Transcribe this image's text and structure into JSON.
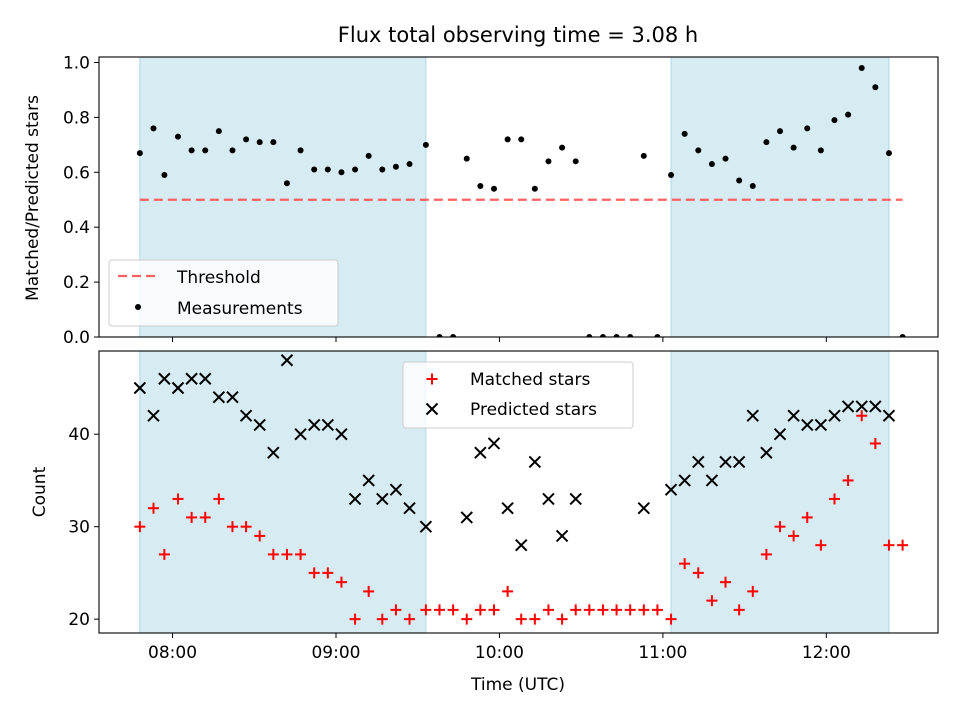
{
  "title": "Flux total observing time = 3.08 h",
  "colors": {
    "shade": "#add8e6",
    "threshold": "#ff6060",
    "measurement": "#000000",
    "matched": "#ff0000",
    "predicted": "#000000"
  },
  "chart_data": [
    {
      "type": "scatter",
      "ylabel": "Matched/Predicted stars",
      "ylim": [
        0,
        1.02
      ],
      "yticks": [
        0.0,
        0.2,
        0.4,
        0.6,
        0.8,
        1.0
      ],
      "yticklabels": [
        "0.0",
        "0.2",
        "0.4",
        "0.6",
        "0.8",
        "1.0"
      ],
      "xlim": [
        "07:33",
        "12:41"
      ],
      "grid": false,
      "shaded_intervals": [
        [
          "07:48",
          "09:33"
        ],
        [
          "11:03",
          "12:23"
        ]
      ],
      "legend": {
        "placement": "lower-left",
        "threshold_label": "Threshold",
        "measurement_label": "Measurements"
      },
      "threshold": {
        "value": 0.5,
        "x_range": [
          "07:48",
          "12:28"
        ]
      },
      "measurements": [
        [
          "07:48",
          0.67
        ],
        [
          "07:53",
          0.76
        ],
        [
          "07:57",
          0.59
        ],
        [
          "08:02",
          0.73
        ],
        [
          "08:07",
          0.68
        ],
        [
          "08:12",
          0.68
        ],
        [
          "08:17",
          0.75
        ],
        [
          "08:22",
          0.68
        ],
        [
          "08:27",
          0.72
        ],
        [
          "08:32",
          0.71
        ],
        [
          "08:37",
          0.71
        ],
        [
          "08:42",
          0.56
        ],
        [
          "08:47",
          0.68
        ],
        [
          "08:52",
          0.61
        ],
        [
          "08:57",
          0.61
        ],
        [
          "09:02",
          0.6
        ],
        [
          "09:07",
          0.61
        ],
        [
          "09:12",
          0.66
        ],
        [
          "09:17",
          0.61
        ],
        [
          "09:22",
          0.62
        ],
        [
          "09:27",
          0.63
        ],
        [
          "09:33",
          0.7
        ],
        [
          "09:38",
          0.0
        ],
        [
          "09:43",
          0.0
        ],
        [
          "09:48",
          0.65
        ],
        [
          "09:53",
          0.55
        ],
        [
          "09:58",
          0.54
        ],
        [
          "10:03",
          0.72
        ],
        [
          "10:08",
          0.72
        ],
        [
          "10:13",
          0.54
        ],
        [
          "10:18",
          0.64
        ],
        [
          "10:23",
          0.69
        ],
        [
          "10:28",
          0.64
        ],
        [
          "10:33",
          0.0
        ],
        [
          "10:38",
          0.0
        ],
        [
          "10:43",
          0.0
        ],
        [
          "10:48",
          0.0
        ],
        [
          "10:53",
          0.66
        ],
        [
          "10:58",
          0.0
        ],
        [
          "11:03",
          0.59
        ],
        [
          "11:08",
          0.74
        ],
        [
          "11:13",
          0.68
        ],
        [
          "11:18",
          0.63
        ],
        [
          "11:23",
          0.65
        ],
        [
          "11:28",
          0.57
        ],
        [
          "11:33",
          0.55
        ],
        [
          "11:38",
          0.71
        ],
        [
          "11:43",
          0.75
        ],
        [
          "11:48",
          0.69
        ],
        [
          "11:53",
          0.76
        ],
        [
          "11:58",
          0.68
        ],
        [
          "12:03",
          0.79
        ],
        [
          "12:08",
          0.81
        ],
        [
          "12:13",
          0.98
        ],
        [
          "12:18",
          0.91
        ],
        [
          "12:23",
          0.67
        ],
        [
          "12:28",
          0.0
        ]
      ]
    },
    {
      "type": "scatter",
      "xlabel": "Time (UTC)",
      "ylabel": "Count",
      "ylim": [
        18.5,
        49
      ],
      "yticks": [
        20,
        30,
        40
      ],
      "yticklabels": [
        "20",
        "30",
        "40"
      ],
      "xlim": [
        "07:33",
        "12:41"
      ],
      "xticks": [
        "08:00",
        "09:00",
        "10:00",
        "11:00",
        "12:00"
      ],
      "xticklabels": [
        "08:00",
        "09:00",
        "10:00",
        "11:00",
        "12:00"
      ],
      "grid": false,
      "shaded_intervals": [
        [
          "07:48",
          "09:33"
        ],
        [
          "11:03",
          "12:23"
        ]
      ],
      "legend": {
        "placement": "top-center",
        "matched_label": "Matched stars",
        "predicted_label": "Predicted stars"
      },
      "matched": [
        [
          "07:48",
          30
        ],
        [
          "07:53",
          32
        ],
        [
          "07:57",
          27
        ],
        [
          "08:02",
          33
        ],
        [
          "08:07",
          31
        ],
        [
          "08:12",
          31
        ],
        [
          "08:17",
          33
        ],
        [
          "08:22",
          30
        ],
        [
          "08:27",
          30
        ],
        [
          "08:32",
          29
        ],
        [
          "08:37",
          27
        ],
        [
          "08:42",
          27
        ],
        [
          "08:47",
          27
        ],
        [
          "08:52",
          25
        ],
        [
          "08:57",
          25
        ],
        [
          "09:02",
          24
        ],
        [
          "09:07",
          20
        ],
        [
          "09:12",
          23
        ],
        [
          "09:17",
          20
        ],
        [
          "09:22",
          21
        ],
        [
          "09:27",
          20
        ],
        [
          "09:33",
          21
        ],
        [
          "09:38",
          21
        ],
        [
          "09:43",
          21
        ],
        [
          "09:48",
          20
        ],
        [
          "09:53",
          21
        ],
        [
          "09:58",
          21
        ],
        [
          "10:03",
          23
        ],
        [
          "10:08",
          20
        ],
        [
          "10:13",
          20
        ],
        [
          "10:18",
          21
        ],
        [
          "10:23",
          20
        ],
        [
          "10:28",
          21
        ],
        [
          "10:33",
          21
        ],
        [
          "10:38",
          21
        ],
        [
          "10:43",
          21
        ],
        [
          "10:48",
          21
        ],
        [
          "10:53",
          21
        ],
        [
          "10:58",
          21
        ],
        [
          "11:03",
          20
        ],
        [
          "11:08",
          26
        ],
        [
          "11:13",
          25
        ],
        [
          "11:18",
          22
        ],
        [
          "11:23",
          24
        ],
        [
          "11:28",
          21
        ],
        [
          "11:33",
          23
        ],
        [
          "11:38",
          27
        ],
        [
          "11:43",
          30
        ],
        [
          "11:48",
          29
        ],
        [
          "11:53",
          31
        ],
        [
          "11:58",
          28
        ],
        [
          "12:03",
          33
        ],
        [
          "12:08",
          35
        ],
        [
          "12:13",
          42
        ],
        [
          "12:18",
          39
        ],
        [
          "12:23",
          28
        ],
        [
          "12:28",
          28
        ]
      ],
      "predicted": [
        [
          "07:48",
          45
        ],
        [
          "07:53",
          42
        ],
        [
          "07:57",
          46
        ],
        [
          "08:02",
          45
        ],
        [
          "08:07",
          46
        ],
        [
          "08:12",
          46
        ],
        [
          "08:17",
          44
        ],
        [
          "08:22",
          44
        ],
        [
          "08:27",
          42
        ],
        [
          "08:32",
          41
        ],
        [
          "08:37",
          38
        ],
        [
          "08:42",
          48
        ],
        [
          "08:47",
          40
        ],
        [
          "08:52",
          41
        ],
        [
          "08:57",
          41
        ],
        [
          "09:02",
          40
        ],
        [
          "09:07",
          33
        ],
        [
          "09:12",
          35
        ],
        [
          "09:17",
          33
        ],
        [
          "09:22",
          34
        ],
        [
          "09:27",
          32
        ],
        [
          "09:33",
          30
        ],
        [
          "09:48",
          31
        ],
        [
          "09:53",
          38
        ],
        [
          "09:58",
          39
        ],
        [
          "10:03",
          32
        ],
        [
          "10:08",
          28
        ],
        [
          "10:13",
          37
        ],
        [
          "10:18",
          33
        ],
        [
          "10:23",
          29
        ],
        [
          "10:28",
          33
        ],
        [
          "10:53",
          32
        ],
        [
          "11:03",
          34
        ],
        [
          "11:08",
          35
        ],
        [
          "11:13",
          37
        ],
        [
          "11:18",
          35
        ],
        [
          "11:23",
          37
        ],
        [
          "11:28",
          37
        ],
        [
          "11:33",
          42
        ],
        [
          "11:38",
          38
        ],
        [
          "11:43",
          40
        ],
        [
          "11:48",
          42
        ],
        [
          "11:53",
          41
        ],
        [
          "11:58",
          41
        ],
        [
          "12:03",
          42
        ],
        [
          "12:08",
          43
        ],
        [
          "12:13",
          43
        ],
        [
          "12:18",
          43
        ],
        [
          "12:23",
          42
        ]
      ]
    }
  ]
}
